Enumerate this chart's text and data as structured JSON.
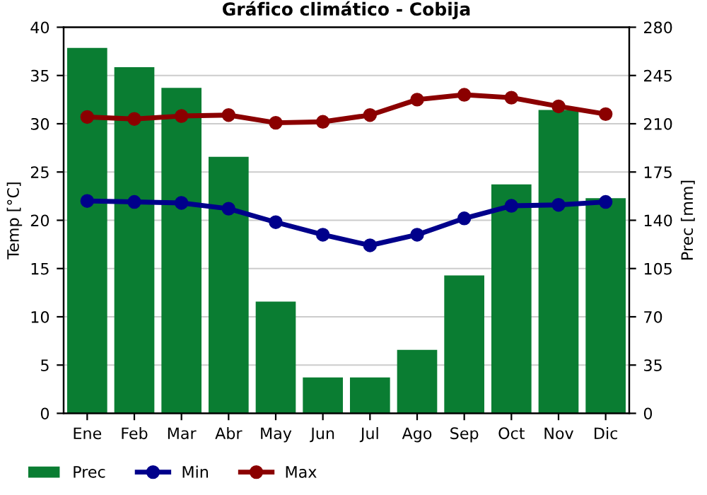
{
  "chart_data": {
    "type": "bar",
    "title": "Gráfico climático - Cobija",
    "ylabel": "Temp [°C]",
    "y2label": "Prec [mm]",
    "categories": [
      "Ene",
      "Feb",
      "Mar",
      "Abr",
      "May",
      "Jun",
      "Jul",
      "Ago",
      "Sep",
      "Oct",
      "Nov",
      "Dic"
    ],
    "series": [
      {
        "name": "Prec",
        "axis": "y2",
        "color": "#0a7d32",
        "values": [
          265,
          251,
          236,
          186,
          81,
          26,
          26,
          46,
          100,
          166,
          220,
          156
        ]
      },
      {
        "name": "Min",
        "type": "line",
        "color": "#00008b",
        "values": [
          22.0,
          21.9,
          21.8,
          21.2,
          19.8,
          18.5,
          17.4,
          18.5,
          20.2,
          21.5,
          21.6,
          21.9
        ]
      },
      {
        "name": "Max",
        "type": "line",
        "color": "#8b0000",
        "values": [
          30.7,
          30.5,
          30.8,
          30.9,
          30.1,
          30.2,
          30.9,
          32.5,
          33.0,
          32.7,
          31.8,
          31.0
        ]
      }
    ],
    "ylim": [
      0,
      40
    ],
    "yticks": [
      0,
      5,
      10,
      15,
      20,
      25,
      30,
      35,
      40
    ],
    "y2lim": [
      0,
      280
    ],
    "y2ticks": [
      0,
      35,
      70,
      105,
      140,
      175,
      210,
      245,
      280
    ],
    "grid": "y",
    "legend": "bottom left",
    "marker": "circle",
    "line_style": "solid"
  }
}
